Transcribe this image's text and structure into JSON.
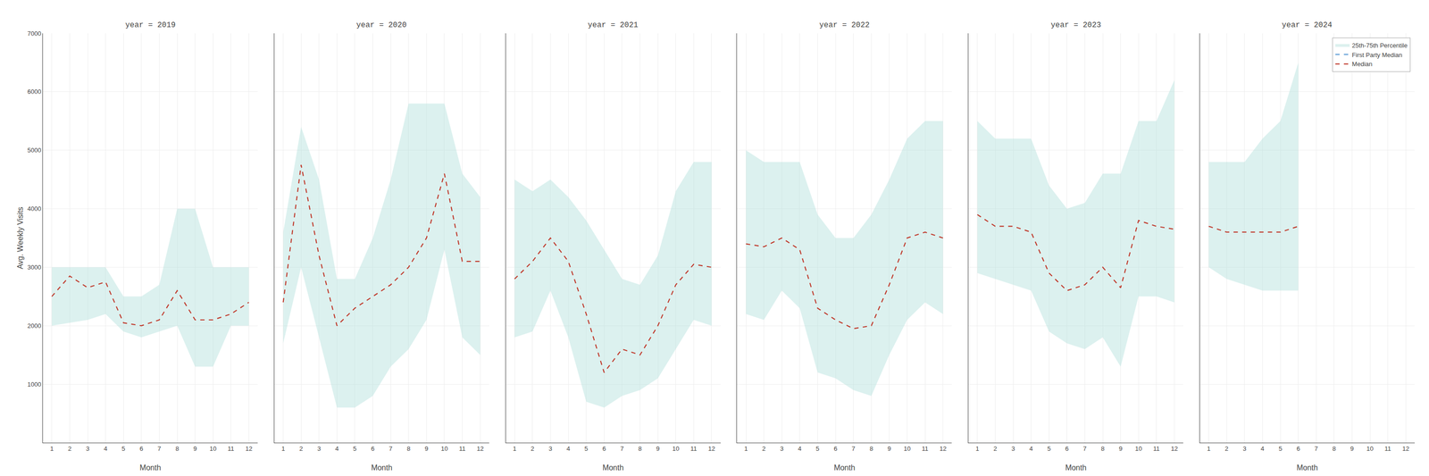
{
  "chart_data": [
    {
      "type": "line",
      "title": "year = 2019",
      "xlabel": "Month",
      "ylabel": "Avg. Weekly Visits",
      "x": [
        1,
        2,
        3,
        4,
        5,
        6,
        7,
        8,
        9,
        10,
        11,
        12
      ],
      "xlim": [
        0.5,
        12.5
      ],
      "xticks": [
        1,
        2,
        3,
        4,
        5,
        6,
        7,
        8,
        9,
        10,
        11,
        12
      ],
      "ylim": [
        0,
        7000
      ],
      "yticks": [
        1000,
        2000,
        3000,
        4000,
        5000,
        6000,
        7000
      ],
      "grid": true,
      "series": [
        {
          "name": "25th-75th Percentile",
          "type": "band",
          "color": "#b2dfdb",
          "lower": [
            2000,
            2050,
            2100,
            2200,
            1900,
            1800,
            1900,
            2000,
            1300,
            1300,
            2000,
            2000
          ],
          "upper": [
            3000,
            3000,
            3000,
            3000,
            2500,
            2500,
            2700,
            4000,
            4000,
            3000,
            3000,
            3000
          ]
        },
        {
          "name": "Median",
          "color": "#c0392b",
          "line_style": "dashed",
          "values": [
            2500,
            2850,
            2650,
            2750,
            2050,
            2000,
            2100,
            2600,
            2100,
            2100,
            2200,
            2400
          ]
        }
      ]
    },
    {
      "type": "line",
      "title": "year = 2020",
      "xlabel": "Month",
      "x": [
        1,
        2,
        3,
        4,
        5,
        6,
        7,
        8,
        9,
        10,
        11,
        12
      ],
      "xlim": [
        0.5,
        12.5
      ],
      "xticks": [
        1,
        2,
        3,
        4,
        5,
        6,
        7,
        8,
        9,
        10,
        11,
        12
      ],
      "ylim": [
        0,
        7000
      ],
      "yticks": [
        1000,
        2000,
        3000,
        4000,
        5000,
        6000,
        7000
      ],
      "grid": true,
      "tick_labels": "x",
      "series": [
        {
          "name": "25th-75th Percentile",
          "type": "band",
          "color": "#b2dfdb",
          "lower": [
            1700,
            3000,
            1800,
            600,
            600,
            800,
            1300,
            1600,
            2100,
            3300,
            1800,
            1500
          ],
          "upper": [
            3600,
            5400,
            4500,
            2800,
            2800,
            3500,
            4500,
            5800,
            5800,
            5800,
            4600,
            4200
          ]
        },
        {
          "name": "Median",
          "color": "#c0392b",
          "line_style": "dashed",
          "values": [
            2400,
            4750,
            3200,
            2000,
            2300,
            2500,
            2700,
            3000,
            3500,
            4600,
            3100,
            3100
          ]
        }
      ]
    },
    {
      "type": "line",
      "title": "year = 2021",
      "xlabel": "Month",
      "x": [
        1,
        2,
        3,
        4,
        5,
        6,
        7,
        8,
        9,
        10,
        11,
        12
      ],
      "xlim": [
        0.5,
        12.5
      ],
      "xticks": [
        1,
        2,
        3,
        4,
        5,
        6,
        7,
        8,
        9,
        10,
        11,
        12
      ],
      "ylim": [
        0,
        7000
      ],
      "yticks": [
        1000,
        2000,
        3000,
        4000,
        5000,
        6000,
        7000
      ],
      "grid": true,
      "tick_labels": "x",
      "series": [
        {
          "name": "25th-75th Percentile",
          "type": "band",
          "color": "#b2dfdb",
          "lower": [
            1800,
            1900,
            2600,
            1800,
            700,
            600,
            800,
            900,
            1100,
            1600,
            2100,
            2000
          ],
          "upper": [
            4500,
            4300,
            4500,
            4200,
            3800,
            3300,
            2800,
            2700,
            3200,
            4300,
            4800,
            4800
          ]
        },
        {
          "name": "Median",
          "color": "#c0392b",
          "line_style": "dashed",
          "values": [
            2800,
            3100,
            3500,
            3100,
            2200,
            1200,
            1600,
            1500,
            2000,
            2700,
            3050,
            3000
          ]
        }
      ]
    },
    {
      "type": "line",
      "title": "year = 2022",
      "xlabel": "Month",
      "x": [
        1,
        2,
        3,
        4,
        5,
        6,
        7,
        8,
        9,
        10,
        11,
        12
      ],
      "xlim": [
        0.5,
        12.5
      ],
      "xticks": [
        1,
        2,
        3,
        4,
        5,
        6,
        7,
        8,
        9,
        10,
        11,
        12
      ],
      "ylim": [
        0,
        7000
      ],
      "yticks": [
        1000,
        2000,
        3000,
        4000,
        5000,
        6000,
        7000
      ],
      "grid": true,
      "tick_labels": "x",
      "series": [
        {
          "name": "25th-75th Percentile",
          "type": "band",
          "color": "#b2dfdb",
          "lower": [
            2200,
            2100,
            2600,
            2300,
            1200,
            1100,
            900,
            800,
            1500,
            2100,
            2400,
            2200
          ],
          "upper": [
            5000,
            4800,
            4800,
            4800,
            3900,
            3500,
            3500,
            3900,
            4500,
            5200,
            5500,
            5500
          ]
        },
        {
          "name": "Median",
          "color": "#c0392b",
          "line_style": "dashed",
          "values": [
            3400,
            3350,
            3500,
            3300,
            2300,
            2100,
            1950,
            2000,
            2700,
            3500,
            3600,
            3500
          ]
        }
      ]
    },
    {
      "type": "line",
      "title": "year = 2023",
      "xlabel": "Month",
      "x": [
        1,
        2,
        3,
        4,
        5,
        6,
        7,
        8,
        9,
        10,
        11,
        12
      ],
      "xlim": [
        0.5,
        12.5
      ],
      "xticks": [
        1,
        2,
        3,
        4,
        5,
        6,
        7,
        8,
        9,
        10,
        11,
        12
      ],
      "ylim": [
        0,
        7000
      ],
      "yticks": [
        1000,
        2000,
        3000,
        4000,
        5000,
        6000,
        7000
      ],
      "grid": true,
      "tick_labels": "x",
      "series": [
        {
          "name": "25th-75th Percentile",
          "type": "band",
          "color": "#b2dfdb",
          "lower": [
            2900,
            2800,
            2700,
            2600,
            1900,
            1700,
            1600,
            1800,
            1300,
            2500,
            2500,
            2400
          ],
          "upper": [
            5500,
            5200,
            5200,
            5200,
            4400,
            4000,
            4100,
            4600,
            4600,
            5500,
            5500,
            6200
          ]
        },
        {
          "name": "Median",
          "color": "#c0392b",
          "line_style": "dashed",
          "values": [
            3900,
            3700,
            3700,
            3600,
            2900,
            2600,
            2700,
            3000,
            2650,
            3800,
            3700,
            3650
          ]
        }
      ]
    },
    {
      "type": "line",
      "title": "year = 2024",
      "xlabel": "Month",
      "x": [
        1,
        2,
        3,
        4,
        5,
        6,
        7,
        8,
        9,
        10,
        11,
        12
      ],
      "xlim": [
        0.5,
        12.5
      ],
      "xticks": [
        1,
        2,
        3,
        4,
        5,
        6,
        7,
        8,
        9,
        10,
        11,
        12
      ],
      "ylim": [
        0,
        7000
      ],
      "yticks": [
        1000,
        2000,
        3000,
        4000,
        5000,
        6000,
        7000
      ],
      "grid": true,
      "tick_labels": "x",
      "legend": "upper right",
      "series": [
        {
          "name": "25th-75th Percentile",
          "type": "band",
          "color": "#b2dfdb",
          "lower": [
            3000,
            2800,
            2700,
            2600,
            2600,
            2600,
            null,
            null,
            null,
            null,
            null,
            null
          ],
          "upper": [
            4800,
            4800,
            4800,
            5200,
            5500,
            6500,
            null,
            null,
            null,
            null,
            null,
            null
          ]
        },
        {
          "name": "Median",
          "color": "#c0392b",
          "line_style": "dashed",
          "values": [
            3700,
            3600,
            3600,
            3600,
            3600,
            3700,
            null,
            null,
            null,
            null,
            null,
            null
          ]
        },
        {
          "name": "First Party Median",
          "color": "#5b9bd5",
          "line_style": "dashed",
          "values": [
            null,
            null,
            null,
            null,
            null,
            null,
            null,
            null,
            null,
            null,
            null,
            null
          ]
        }
      ]
    }
  ]
}
